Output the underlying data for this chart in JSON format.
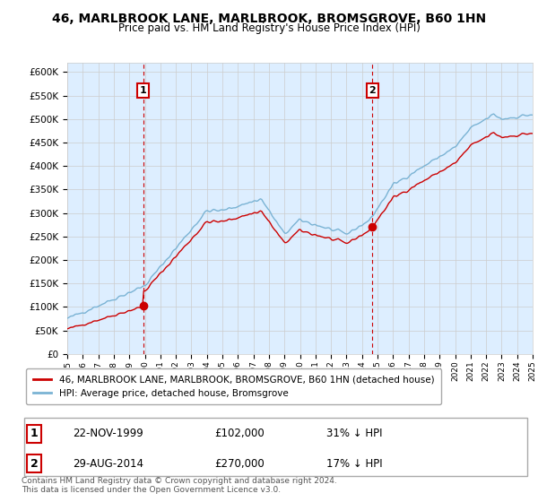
{
  "title": "46, MARLBROOK LANE, MARLBROOK, BROMSGROVE, B60 1HN",
  "subtitle": "Price paid vs. HM Land Registry's House Price Index (HPI)",
  "ylabel_ticks": [
    "£0",
    "£50K",
    "£100K",
    "£150K",
    "£200K",
    "£250K",
    "£300K",
    "£350K",
    "£400K",
    "£450K",
    "£500K",
    "£550K",
    "£600K"
  ],
  "ytick_values": [
    0,
    50000,
    100000,
    150000,
    200000,
    250000,
    300000,
    350000,
    400000,
    450000,
    500000,
    550000,
    600000
  ],
  "hpi_color": "#7ab3d4",
  "price_color": "#cc0000",
  "hpi_fill_color": "#ddeeff",
  "transaction_1": {
    "date_x": 1999.9,
    "price": 102000,
    "label": "1",
    "date_str": "22-NOV-1999",
    "pct": "31% ↓ HPI"
  },
  "transaction_2": {
    "date_x": 2014.67,
    "price": 270000,
    "label": "2",
    "date_str": "29-AUG-2014",
    "pct": "17% ↓ HPI"
  },
  "legend_label_price": "46, MARLBROOK LANE, MARLBROOK, BROMSGROVE, B60 1HN (detached house)",
  "legend_label_hpi": "HPI: Average price, detached house, Bromsgrove",
  "footer": "Contains HM Land Registry data © Crown copyright and database right 2024.\nThis data is licensed under the Open Government Licence v3.0.",
  "xmin": 1995,
  "xmax": 2025,
  "ymin": 0,
  "ymax": 620000,
  "background_color": "#ffffff",
  "grid_color": "#cccccc"
}
